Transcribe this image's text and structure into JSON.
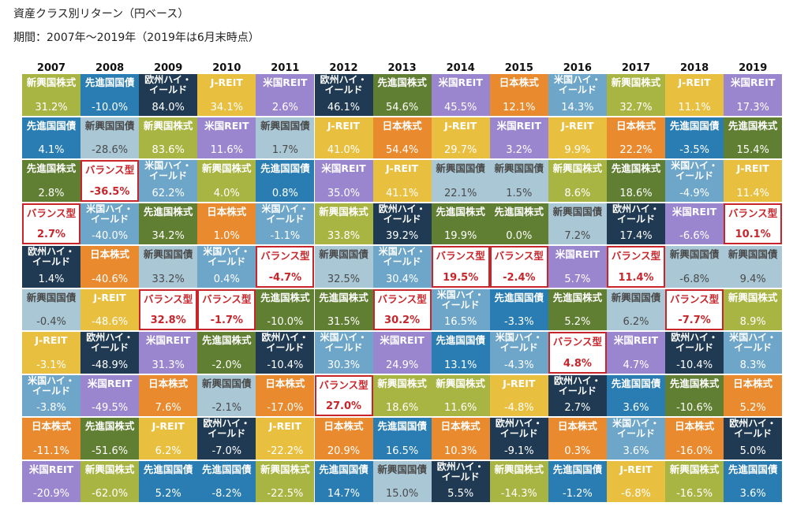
{
  "title": "資産クラス別リターン（円ベース）",
  "subtitle": "期間：2007年〜2019年（2019年は6月末時点）",
  "chart_data": {
    "type": "table",
    "years": [
      "2007",
      "2008",
      "2009",
      "2010",
      "2011",
      "2012",
      "2013",
      "2014",
      "2015",
      "2016",
      "2017",
      "2018",
      "2019"
    ],
    "asset_colors": {
      "新興国株式": "#a9b543",
      "先進国国債": "#2a7db3",
      "欧州ハイ・イールド": "#1f3a52",
      "J-REIT": "#e9bf3f",
      "米国REIT": "#9a86cf",
      "日本株式": "#ea8a2e",
      "先進国株式": "#617f32",
      "新興国国債": "#a9c7d5",
      "米国ハイ・イールド": "#6ea6c9",
      "バランス型": "#ffffff"
    },
    "highlight_border": "#c8252b",
    "columns": [
      [
        {
          "asset": "新興国株式",
          "value": "31.2%"
        },
        {
          "asset": "先進国国債",
          "value": "4.1%"
        },
        {
          "asset": "先進国株式",
          "value": "2.8%"
        },
        {
          "asset": "バランス型",
          "value": "2.7%"
        },
        {
          "asset": "欧州ハイ・イールド",
          "value": "1.4%"
        },
        {
          "asset": "新興国国債",
          "value": "-0.4%"
        },
        {
          "asset": "J-REIT",
          "value": "-3.1%"
        },
        {
          "asset": "米国ハイ・イールド",
          "value": "-3.8%"
        },
        {
          "asset": "日本株式",
          "value": "-11.1%"
        },
        {
          "asset": "米国REIT",
          "value": "-20.9%"
        }
      ],
      [
        {
          "asset": "先進国国債",
          "value": "-10.0%"
        },
        {
          "asset": "新興国国債",
          "value": "-28.6%"
        },
        {
          "asset": "バランス型",
          "value": "-36.5%"
        },
        {
          "asset": "米国ハイ・イールド",
          "value": "-40.0%"
        },
        {
          "asset": "日本株式",
          "value": "-40.6%"
        },
        {
          "asset": "J-REIT",
          "value": "-48.6%"
        },
        {
          "asset": "欧州ハイ・イールド",
          "value": "-48.9%"
        },
        {
          "asset": "米国REIT",
          "value": "-49.5%"
        },
        {
          "asset": "先進国株式",
          "value": "-51.6%"
        },
        {
          "asset": "新興国株式",
          "value": "-62.0%"
        }
      ],
      [
        {
          "asset": "欧州ハイ・イールド",
          "value": "84.0%"
        },
        {
          "asset": "新興国株式",
          "value": "83.6%"
        },
        {
          "asset": "米国ハイ・イールド",
          "value": "62.2%"
        },
        {
          "asset": "先進国株式",
          "value": "34.2%"
        },
        {
          "asset": "新興国国債",
          "value": "33.2%"
        },
        {
          "asset": "バランス型",
          "value": "32.8%"
        },
        {
          "asset": "米国REIT",
          "value": "31.3%"
        },
        {
          "asset": "日本株式",
          "value": "7.6%"
        },
        {
          "asset": "J-REIT",
          "value": "6.2%"
        },
        {
          "asset": "先進国国債",
          "value": "5.2%"
        }
      ],
      [
        {
          "asset": "J-REIT",
          "value": "34.1%"
        },
        {
          "asset": "米国REIT",
          "value": "11.6%"
        },
        {
          "asset": "新興国株式",
          "value": "4.0%"
        },
        {
          "asset": "日本株式",
          "value": "1.0%"
        },
        {
          "asset": "米国ハイ・イールド",
          "value": "0.4%"
        },
        {
          "asset": "バランス型",
          "value": "-1.7%"
        },
        {
          "asset": "先進国株式",
          "value": "-2.0%"
        },
        {
          "asset": "新興国国債",
          "value": "-2.1%"
        },
        {
          "asset": "欧州ハイ・イールド",
          "value": "-7.0%"
        },
        {
          "asset": "先進国国債",
          "value": "-8.2%"
        }
      ],
      [
        {
          "asset": "米国REIT",
          "value": "2.6%"
        },
        {
          "asset": "新興国国債",
          "value": "1.7%"
        },
        {
          "asset": "先進国国債",
          "value": "0.8%"
        },
        {
          "asset": "米国ハイ・イールド",
          "value": "-1.1%"
        },
        {
          "asset": "バランス型",
          "value": "-4.7%"
        },
        {
          "asset": "先進国株式",
          "value": "-10.0%"
        },
        {
          "asset": "欧州ハイ・イールド",
          "value": "-10.4%"
        },
        {
          "asset": "日本株式",
          "value": "-17.0%"
        },
        {
          "asset": "J-REIT",
          "value": "-22.2%"
        },
        {
          "asset": "新興国株式",
          "value": "-22.5%"
        }
      ],
      [
        {
          "asset": "欧州ハイ・イールド",
          "value": "46.1%"
        },
        {
          "asset": "J-REIT",
          "value": "41.0%"
        },
        {
          "asset": "米国REIT",
          "value": "35.0%"
        },
        {
          "asset": "新興国株式",
          "value": "33.8%"
        },
        {
          "asset": "新興国国債",
          "value": "32.5%"
        },
        {
          "asset": "先進国株式",
          "value": "31.5%"
        },
        {
          "asset": "米国ハイ・イールド",
          "value": "30.3%"
        },
        {
          "asset": "バランス型",
          "value": "27.0%"
        },
        {
          "asset": "日本株式",
          "value": "20.9%"
        },
        {
          "asset": "先進国国債",
          "value": "14.7%"
        }
      ],
      [
        {
          "asset": "先進国株式",
          "value": "54.6%"
        },
        {
          "asset": "日本株式",
          "value": "54.4%"
        },
        {
          "asset": "J-REIT",
          "value": "41.1%"
        },
        {
          "asset": "欧州ハイ・イールド",
          "value": "39.2%"
        },
        {
          "asset": "米国ハイ・イールド",
          "value": "30.4%"
        },
        {
          "asset": "バランス型",
          "value": "30.2%"
        },
        {
          "asset": "米国REIT",
          "value": "24.9%"
        },
        {
          "asset": "新興国株式",
          "value": "18.6%"
        },
        {
          "asset": "先進国国債",
          "value": "16.5%"
        },
        {
          "asset": "新興国国債",
          "value": "15.0%"
        }
      ],
      [
        {
          "asset": "米国REIT",
          "value": "45.5%"
        },
        {
          "asset": "J-REIT",
          "value": "29.7%"
        },
        {
          "asset": "新興国国債",
          "value": "22.1%"
        },
        {
          "asset": "先進国株式",
          "value": "19.9%"
        },
        {
          "asset": "バランス型",
          "value": "19.5%"
        },
        {
          "asset": "米国ハイ・イールド",
          "value": "16.5%"
        },
        {
          "asset": "先進国国債",
          "value": "13.1%"
        },
        {
          "asset": "新興国株式",
          "value": "11.6%"
        },
        {
          "asset": "日本株式",
          "value": "10.3%"
        },
        {
          "asset": "欧州ハイ・イールド",
          "value": "5.5%"
        }
      ],
      [
        {
          "asset": "日本株式",
          "value": "12.1%"
        },
        {
          "asset": "米国REIT",
          "value": "3.2%"
        },
        {
          "asset": "新興国国債",
          "value": "1.5%"
        },
        {
          "asset": "先進国株式",
          "value": "0.0%"
        },
        {
          "asset": "バランス型",
          "value": "-2.4%"
        },
        {
          "asset": "先進国国債",
          "value": "-3.3%"
        },
        {
          "asset": "米国ハイ・イールド",
          "value": "-4.3%"
        },
        {
          "asset": "J-REIT",
          "value": "-4.8%"
        },
        {
          "asset": "欧州ハイ・イールド",
          "value": "-9.1%"
        },
        {
          "asset": "新興国株式",
          "value": "-14.3%"
        }
      ],
      [
        {
          "asset": "米国ハイ・イールド",
          "value": "14.3%"
        },
        {
          "asset": "J-REIT",
          "value": "9.9%"
        },
        {
          "asset": "新興国株式",
          "value": "8.6%"
        },
        {
          "asset": "新興国国債",
          "value": "7.2%"
        },
        {
          "asset": "米国REIT",
          "value": "5.7%"
        },
        {
          "asset": "先進国株式",
          "value": "5.2%"
        },
        {
          "asset": "バランス型",
          "value": "4.8%"
        },
        {
          "asset": "欧州ハイ・イールド",
          "value": "2.7%"
        },
        {
          "asset": "日本株式",
          "value": "0.3%"
        },
        {
          "asset": "先進国国債",
          "value": "-1.2%"
        }
      ],
      [
        {
          "asset": "新興国株式",
          "value": "32.7%"
        },
        {
          "asset": "日本株式",
          "value": "22.2%"
        },
        {
          "asset": "先進国株式",
          "value": "18.6%"
        },
        {
          "asset": "欧州ハイ・イールド",
          "value": "17.4%"
        },
        {
          "asset": "バランス型",
          "value": "11.4%"
        },
        {
          "asset": "新興国国債",
          "value": "6.2%"
        },
        {
          "asset": "米国REIT",
          "value": "4.7%"
        },
        {
          "asset": "先進国国債",
          "value": "3.6%"
        },
        {
          "asset": "米国ハイ・イールド",
          "value": "3.6%"
        },
        {
          "asset": "J-REIT",
          "value": "-6.8%"
        }
      ],
      [
        {
          "asset": "J-REIT",
          "value": "11.1%"
        },
        {
          "asset": "先進国国債",
          "value": "-3.5%"
        },
        {
          "asset": "米国ハイ・イールド",
          "value": "-4.9%"
        },
        {
          "asset": "米国REIT",
          "value": "-6.6%"
        },
        {
          "asset": "新興国国債",
          "value": "-6.8%"
        },
        {
          "asset": "バランス型",
          "value": "-7.7%"
        },
        {
          "asset": "欧州ハイ・イールド",
          "value": "-10.4%"
        },
        {
          "asset": "先進国株式",
          "value": "-10.6%"
        },
        {
          "asset": "日本株式",
          "value": "-16.0%"
        },
        {
          "asset": "新興国株式",
          "value": "-16.5%"
        }
      ],
      [
        {
          "asset": "米国REIT",
          "value": "17.3%"
        },
        {
          "asset": "先進国株式",
          "value": "15.4%"
        },
        {
          "asset": "J-REIT",
          "value": "11.4%"
        },
        {
          "asset": "バランス型",
          "value": "10.1%"
        },
        {
          "asset": "新興国国債",
          "value": "9.4%"
        },
        {
          "asset": "新興国株式",
          "value": "8.9%"
        },
        {
          "asset": "米国ハイ・イールド",
          "value": "8.3%"
        },
        {
          "asset": "日本株式",
          "value": "5.2%"
        },
        {
          "asset": "欧州ハイ・イールド",
          "value": "5.0%"
        },
        {
          "asset": "先進国国債",
          "value": "3.6%"
        }
      ]
    ]
  }
}
